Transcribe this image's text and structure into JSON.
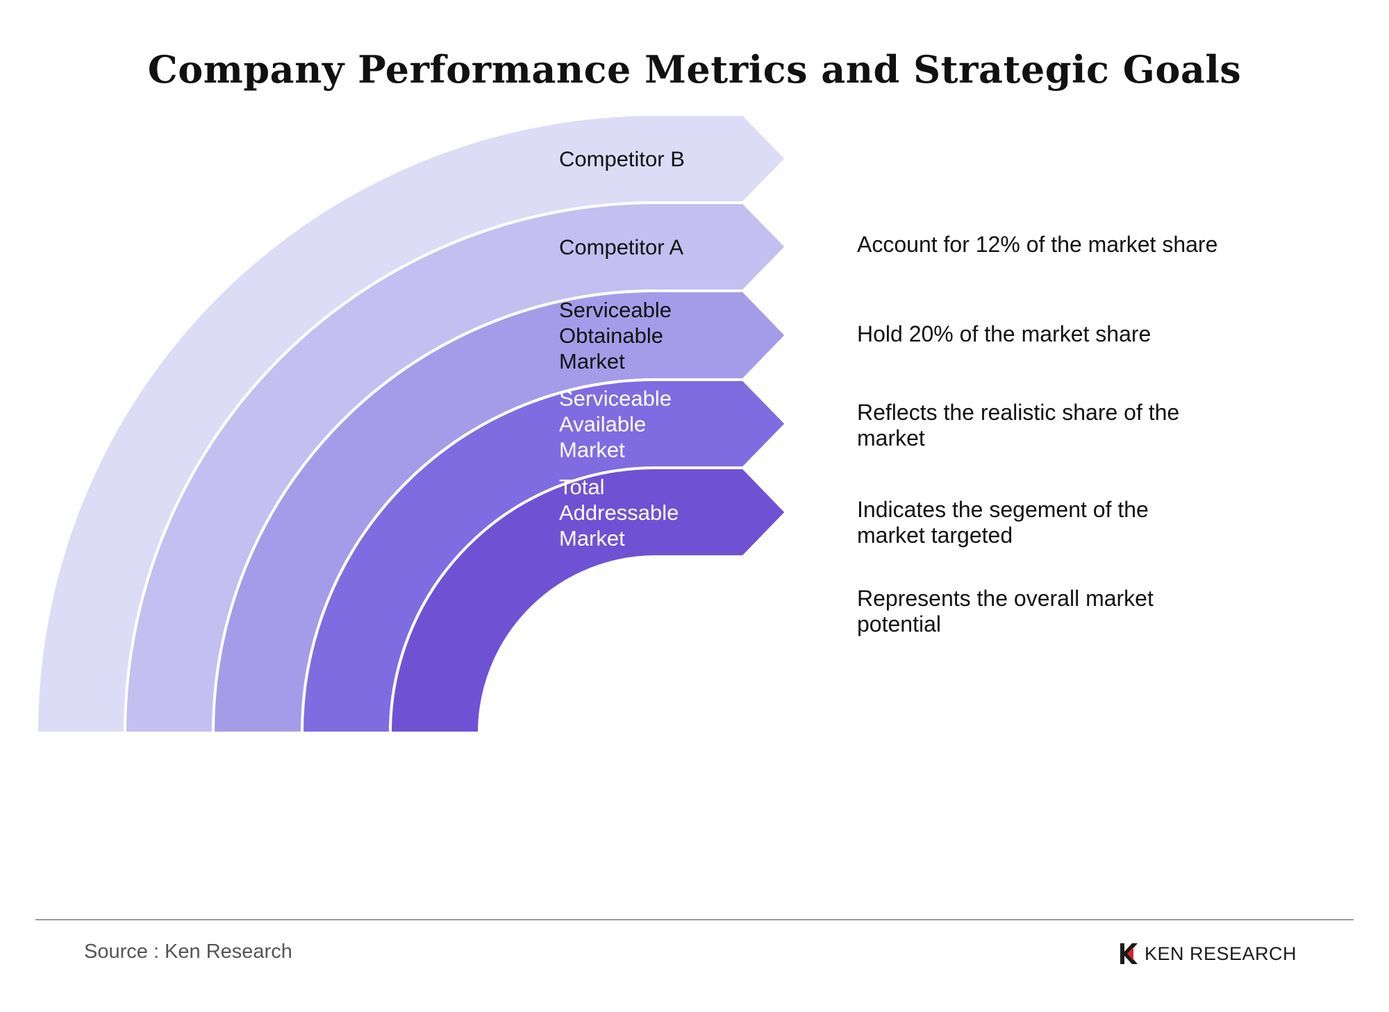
{
  "title": "Company Performance Metrics and Strategic Goals",
  "bands": [
    {
      "label_lines": [
        "Competitor B"
      ],
      "description": "Account for 12% of the market share",
      "fill": "#dcdcf7",
      "text_color": "#111111"
    },
    {
      "label_lines": [
        "Competitor A"
      ],
      "description": "Hold 20% of the market share",
      "fill": "#c3bff0",
      "text_color": "#111111"
    },
    {
      "label_lines": [
        "Serviceable",
        "Obtainable",
        "Market"
      ],
      "description": "Reflects the realistic share of the market",
      "fill": "#a59ce9",
      "text_color": "#111111"
    },
    {
      "label_lines": [
        "Serviceable",
        "Available",
        "Market"
      ],
      "description": "Indicates the segement of the market targeted",
      "fill": "#7f6ce0",
      "text_color": "#ffffff"
    },
    {
      "label_lines": [
        "Total",
        "Addressable",
        "Market"
      ],
      "description": "Represents the overall market potential",
      "fill": "#6f52d3",
      "text_color": "#ffffff"
    }
  ],
  "footer": {
    "source": "Source : Ken Research",
    "brand": "KEN RESEARCH"
  }
}
